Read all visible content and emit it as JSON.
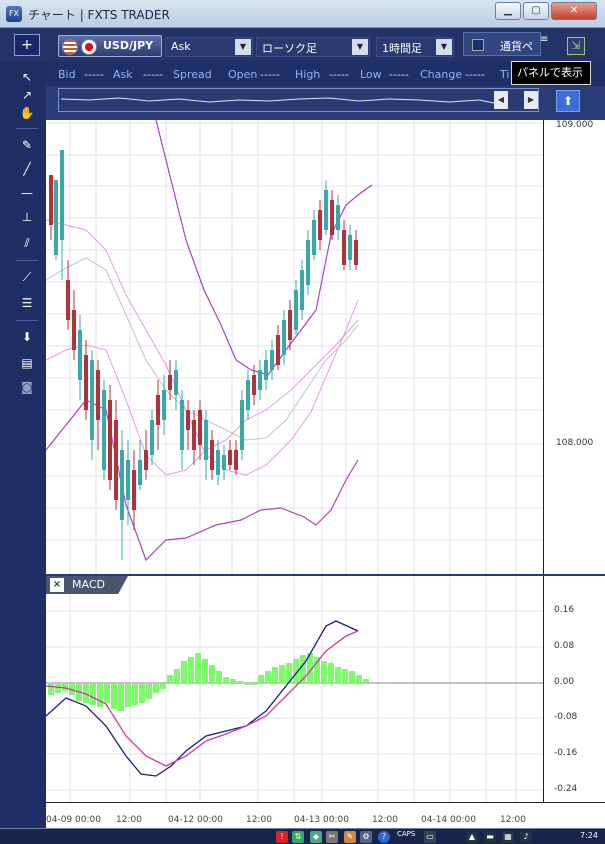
{
  "window": {
    "title": "チャート | FXTS TRADER",
    "app_badge": "FX",
    "buttons": [
      "▁",
      "▢",
      "✕"
    ]
  },
  "toolbar": {
    "add_label": "+",
    "pair": "USD/JPY",
    "price_type": "Ask",
    "chart_type": "ローソク足",
    "timeframe": "1時間足",
    "panel_label": "通貨ペ",
    "tooltip": "パネルで表示"
  },
  "quote_fields": [
    "Bid",
    "Ask",
    "Spread",
    "Open",
    "High",
    "Low",
    "Change",
    "Ti"
  ],
  "quote_placeholder": "-----",
  "price_axis": [
    "109.000",
    "108.000"
  ],
  "macd": {
    "title": "MACD",
    "close_label": "×",
    "axis": [
      "0.16",
      "0.08",
      "0.00",
      "-0.08",
      "-0.16",
      "-0.24"
    ]
  },
  "time_axis": [
    "04-09 00:00",
    "12:00",
    "04-12 00:00",
    "12:00",
    "04-13 00:00",
    "12:00",
    "04-14 00:00",
    "12:00"
  ],
  "taskbar": {
    "caps": "CAPS",
    "clock": "7:24"
  },
  "colors": {
    "candle_up": "#3aa7a8",
    "candle_down": "#b0323b",
    "bollinger_outer": "#a344c9",
    "bollinger_inner": "#e39be6",
    "moving_average": "#c3c3c3",
    "macd_line": "#15217a",
    "signal_line": "#d4369d",
    "histogram": "#80f86e"
  }
}
